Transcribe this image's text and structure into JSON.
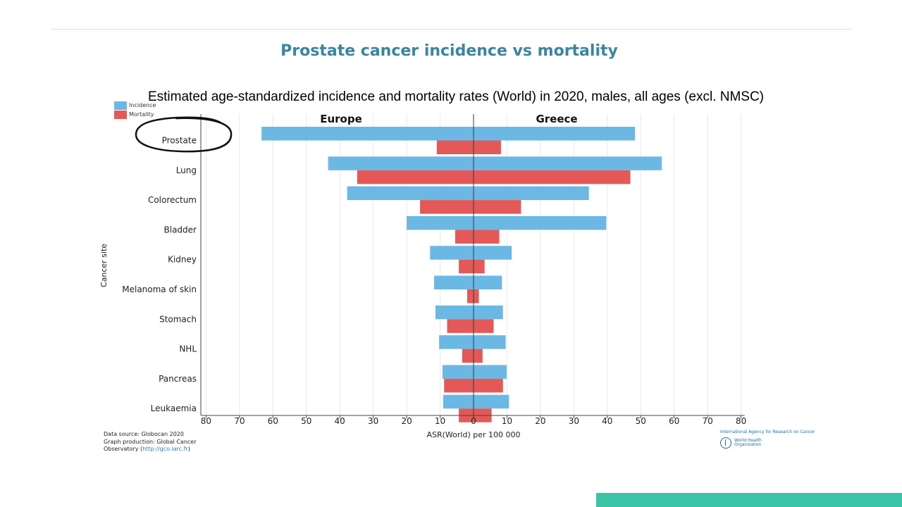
{
  "slide": {
    "title": "Prostate cancer incidence vs mortality"
  },
  "chart_data": {
    "type": "bar",
    "orientation": "horizontal-population-pyramid",
    "title": "Estimated age-standardized incidence and mortality rates (World) in 2020, males, all ages (excl. NMSC)",
    "ylabel": "Cancer site",
    "xlabel": "ASR(World) per 100 000",
    "xlim": [
      -80,
      80
    ],
    "xticks": [
      80,
      70,
      60,
      50,
      40,
      30,
      20,
      10,
      0,
      10,
      20,
      30,
      40,
      50,
      60,
      70,
      80
    ],
    "grid": true,
    "legend_position": "top-left",
    "panels": [
      "Europe",
      "Greece"
    ],
    "categories": [
      "Prostate",
      "Lung",
      "Colorectum",
      "Bladder",
      "Kidney",
      "Melanoma of skin",
      "Stomach",
      "NHL",
      "Pancreas",
      "Leukaemia"
    ],
    "highlighted_category": "Prostate",
    "series": [
      {
        "name": "Incidence",
        "color": "#6cb8e4",
        "panel": "Europe",
        "values": [
          63.4,
          43.5,
          37.8,
          20,
          13,
          11.8,
          11.4,
          10.3,
          9.3,
          9.1
        ]
      },
      {
        "name": "Mortality",
        "color": "#e55858",
        "panel": "Europe",
        "values": [
          11,
          34.8,
          16,
          5.5,
          4.4,
          1.9,
          7.9,
          3.4,
          8.8,
          4.4
        ]
      },
      {
        "name": "Incidence",
        "color": "#6cb8e4",
        "panel": "Greece",
        "values": [
          48.3,
          56.3,
          34.5,
          39.7,
          11.4,
          8.5,
          8.8,
          9.6,
          9.9,
          10.6
        ]
      },
      {
        "name": "Mortality",
        "color": "#e55858",
        "panel": "Greece",
        "values": [
          8.2,
          46.9,
          14.2,
          7.7,
          3.3,
          1.6,
          6,
          2.7,
          8.8,
          5.4
        ]
      }
    ]
  },
  "footer": {
    "source_line1": "Data source: Globocan 2020",
    "source_line2": "Graph production: Global Cancer",
    "source_line3_prefix": "Observatory (",
    "source_link": "http://gco.iarc.fr",
    "source_line3_suffix": ")",
    "iarc_name": "International Agency for Research on Cancer",
    "who_name": "World Health Organization"
  },
  "colors": {
    "title": "#3a86a0",
    "incidence": "#6cb8e4",
    "mortality": "#e55858",
    "accent_bar": "#3cc4a6",
    "annotation": "#111111"
  }
}
